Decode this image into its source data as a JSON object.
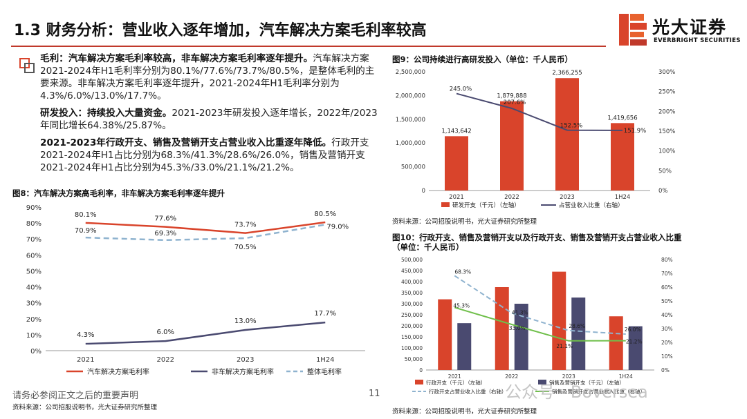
{
  "header": {
    "title": "1.3 财务分析：营业收入逐年增加，汽车解决方案毛利率较高",
    "logo_cn": "光大证券",
    "logo_en": "EVERBRIGHT SECURITIES",
    "brand_color": "#d9442b"
  },
  "text": {
    "p1_bold": "毛利：汽车解决方案毛利率较高，非车解决方案毛利率逐年提升。",
    "p1": "汽车解决方案2021-2024年H1毛利率分别为80.1%/77.6%/73.7%/80.5%，是整体毛利的主要来源。非车解决方案毛利率逐年提升，2021-2024年H1毛利率分别为4.3%/6.0%/13.0%/17.7%。",
    "p2_bold": "研发投入：持续投入大量资金。",
    "p2": "2021-2023年研发投入逐年增长，2022年/2023年同比增长64.38%/25.87%。",
    "p3_bold": "2021-2023年行政开支、销售及营销开支占营业收入比重逐年降低。",
    "p3": "行政开支2021-2024年H1占比分别为68.3%/41.3%/28.6%/26.0%，销售及营销开支2021-2024年H1占比分别为45.3%/33.0%/21.1%/21.2%。"
  },
  "figures": {
    "fig8_title": "图8：汽车解决方案高毛利率，非车解决方案毛利率逐年提升",
    "fig8_source": "资料来源：公司招股说明书，光大证券研究所整理",
    "fig9_title": "图9：公司持续进行高研发投入（单位：千人民币）",
    "fig9_source": "资料来源：公司招股说明书，光大证券研究所整理",
    "fig10_title": "图10：行政开支、销售及营销开支以及行政开支、销售及营销开支占营业收入比重",
    "fig10_title2": "（单位：千人民币）",
    "fig10_source": "资料来源：公司招股说明书，光大证券研究所整理"
  },
  "footer": {
    "disclaimer": "请务必参阅正文之后的重要声明",
    "page": "11",
    "watermark": "公众号 · Boversea"
  },
  "chart_data": [
    {
      "id": "fig8",
      "type": "line",
      "categories": [
        "2021",
        "2022",
        "2023",
        "1H24"
      ],
      "ylim": [
        0,
        90
      ],
      "yticks": [
        0,
        10,
        20,
        30,
        40,
        50,
        60,
        70,
        80,
        90
      ],
      "y_unit": "%",
      "legend_position": "bottom",
      "series": [
        {
          "name": "汽车解决方案毛利率",
          "values": [
            80.1,
            77.6,
            73.7,
            80.5
          ],
          "labels": [
            "80.1%",
            "77.6%",
            "73.7%",
            "80.5%"
          ],
          "color": "#d9442b",
          "dash": false
        },
        {
          "name": "非车解决方案毛利率",
          "values": [
            4.3,
            6.0,
            13.0,
            17.7
          ],
          "labels": [
            "4.3%",
            "6.0%",
            "13.0%",
            "17.7%"
          ],
          "color": "#4a4a70",
          "dash": false
        },
        {
          "name": "整体毛利率",
          "values": [
            70.9,
            69.3,
            70.5,
            79.0
          ],
          "labels": [
            "70.9%",
            "69.3%",
            "70.5%",
            "79.0%"
          ],
          "color": "#8fb3cf",
          "dash": true
        }
      ]
    },
    {
      "id": "fig9",
      "type": "bar",
      "categories": [
        "2021",
        "2022",
        "2023",
        "1H24"
      ],
      "ylim_left": [
        0,
        2500000
      ],
      "yticks_left": [
        0,
        500000,
        1000000,
        1500000,
        2000000,
        2500000
      ],
      "ytick_labels_left": [
        "0",
        "500,000",
        "1,000,000",
        "1,500,000",
        "2,000,000",
        "2,500,000"
      ],
      "ylim_right": [
        0,
        300
      ],
      "yticks_right": [
        0,
        50,
        100,
        150,
        200,
        250,
        300
      ],
      "legend_position": "bottom",
      "bars": {
        "name": "研发开支（千元）（左轴）",
        "values": [
          1143642,
          1879888,
          2366255,
          1419656
        ],
        "labels": [
          "1,143,642",
          "1,879,888",
          "2,366,255",
          "1,419,656"
        ],
        "color": "#d9442b"
      },
      "line": {
        "name": "占营业收入比重（右轴）",
        "values": [
          245.0,
          207.6,
          152.5,
          151.9
        ],
        "labels": [
          "245.0%",
          "207.6%",
          "152.5%",
          "151.9%"
        ],
        "color": "#4a4a70"
      }
    },
    {
      "id": "fig10",
      "type": "bar",
      "categories": [
        "2021",
        "2022",
        "2023",
        "1H24"
      ],
      "ylim_left": [
        0,
        500000
      ],
      "yticks_left": [
        0,
        50000,
        100000,
        150000,
        200000,
        250000,
        300000,
        350000,
        400000,
        450000,
        500000
      ],
      "ytick_labels_left": [
        "0",
        "50,000",
        "100,000",
        "150,000",
        "200,000",
        "250,000",
        "300,000",
        "350,000",
        "400,000",
        "450,000",
        "500,000"
      ],
      "ylim_right": [
        0,
        80
      ],
      "yticks_right": [
        0,
        10,
        20,
        30,
        40,
        50,
        60,
        70,
        80
      ],
      "legend_position": "bottom",
      "bar_series": [
        {
          "name": "行政开支（千元）（左轴）",
          "values": [
            320000,
            375000,
            445000,
            243000
          ],
          "color": "#d9442b"
        },
        {
          "name": "销售及营销开支（千元）（左轴）",
          "values": [
            212000,
            300000,
            328000,
            198000
          ],
          "color": "#4a4a70"
        }
      ],
      "line_series": [
        {
          "name": "行政开支占营业收入比重（右轴）",
          "values": [
            68.3,
            41.3,
            28.6,
            26.0
          ],
          "labels": [
            "68.3%",
            "41.3%",
            "28.6%",
            "26.0%"
          ],
          "color": "#8fb3cf",
          "dash": true
        },
        {
          "name": "销售及营销开支占营业收入比重（右轴）",
          "values": [
            45.3,
            33.0,
            21.1,
            21.2
          ],
          "labels": [
            "45.3%",
            "33.0%",
            "21.1%",
            "21.2%"
          ],
          "color": "#6fbf4a",
          "dash": false
        }
      ]
    }
  ]
}
